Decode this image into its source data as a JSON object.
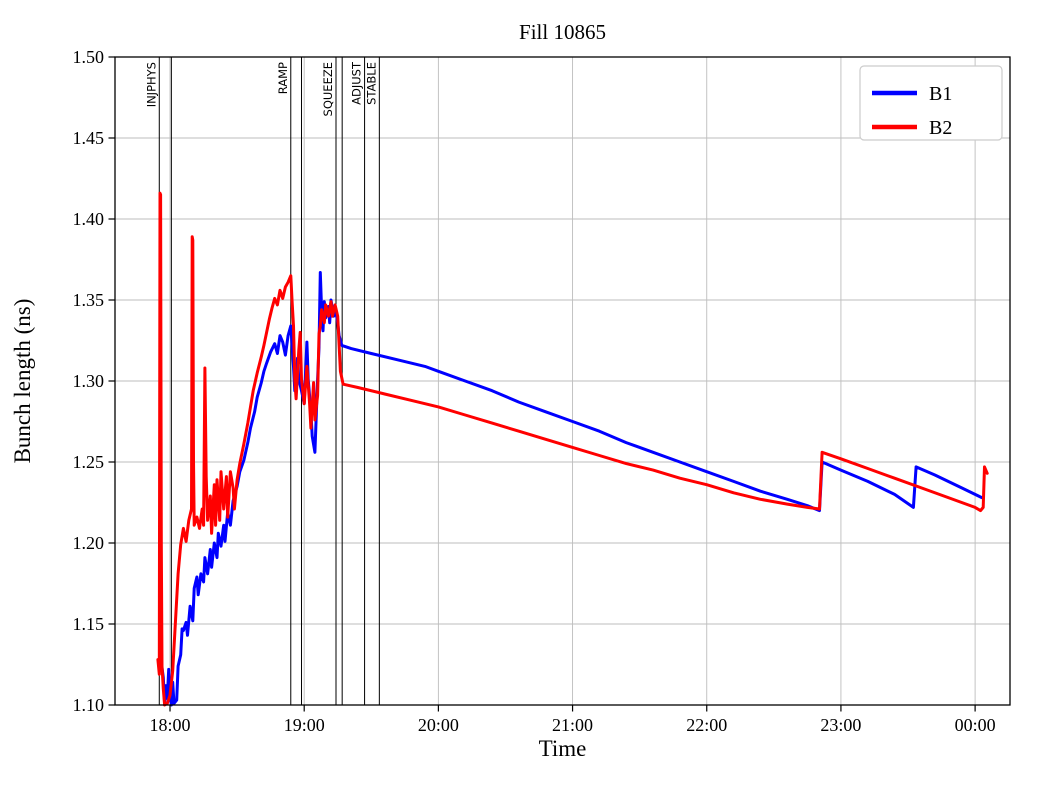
{
  "page": {
    "title": "Fill 10865"
  },
  "chart_data": {
    "type": "line",
    "title": "Fill 10865",
    "xlabel": "Time",
    "ylabel": "Bunch length (ns)",
    "x_unit": "hours after 18:00 (clock times shown on axis)",
    "xlim": [
      -0.41,
      6.26
    ],
    "ylim": [
      1.1,
      1.5
    ],
    "grid": true,
    "legend_position": "upper right",
    "x_ticks": [
      {
        "t": 0,
        "label": "18:00"
      },
      {
        "t": 1,
        "label": "19:00"
      },
      {
        "t": 2,
        "label": "20:00"
      },
      {
        "t": 3,
        "label": "21:00"
      },
      {
        "t": 4,
        "label": "22:00"
      },
      {
        "t": 5,
        "label": "23:00"
      },
      {
        "t": 6,
        "label": "00:00"
      }
    ],
    "y_ticks": [
      1.1,
      1.15,
      1.2,
      1.25,
      1.3,
      1.35,
      1.4,
      1.45,
      1.5
    ],
    "style": {
      "grid_color": "#bdbdbd",
      "axis_color": "#000000",
      "legend_edge": "#cccccc",
      "background": "#ffffff",
      "series_linewidth": 3,
      "mode_line_color": "#000000"
    },
    "beam_modes": [
      {
        "label": "INJPHYS",
        "lines": [
          -0.08,
          0.01
        ]
      },
      {
        "label": "RAMP",
        "lines": [
          0.9,
          0.98
        ]
      },
      {
        "label": "SQUEEZE",
        "lines": [
          1.237,
          1.283
        ]
      },
      {
        "label": "ADJUST",
        "lines": [
          1.45
        ]
      },
      {
        "label": "STABLE",
        "lines": [
          1.56
        ]
      }
    ],
    "series": [
      {
        "name": "B1",
        "color": "#0000ff",
        "points": [
          [
            -0.06,
            1.123
          ],
          [
            -0.05,
            1.117
          ],
          [
            -0.04,
            1.101
          ],
          [
            -0.03,
            1.112
          ],
          [
            -0.02,
            1.104
          ],
          [
            -0.01,
            1.122
          ],
          [
            0,
            1.107
          ],
          [
            0.01,
            1.1
          ],
          [
            0.02,
            1.114
          ],
          [
            0.03,
            1.101
          ],
          [
            0.05,
            1.103
          ],
          [
            0.06,
            1.124
          ],
          [
            0.08,
            1.131
          ],
          [
            0.09,
            1.147
          ],
          [
            0.1,
            1.146
          ],
          [
            0.12,
            1.151
          ],
          [
            0.13,
            1.143
          ],
          [
            0.15,
            1.161
          ],
          [
            0.17,
            1.152
          ],
          [
            0.18,
            1.172
          ],
          [
            0.2,
            1.179
          ],
          [
            0.21,
            1.168
          ],
          [
            0.23,
            1.181
          ],
          [
            0.25,
            1.176
          ],
          [
            0.26,
            1.191
          ],
          [
            0.28,
            1.181
          ],
          [
            0.3,
            1.196
          ],
          [
            0.31,
            1.185
          ],
          [
            0.33,
            1.2
          ],
          [
            0.35,
            1.191
          ],
          [
            0.36,
            1.206
          ],
          [
            0.38,
            1.198
          ],
          [
            0.4,
            1.211
          ],
          [
            0.41,
            1.201
          ],
          [
            0.43,
            1.219
          ],
          [
            0.45,
            1.211
          ],
          [
            0.47,
            1.226
          ],
          [
            0.5,
            1.235
          ],
          [
            0.52,
            1.244
          ],
          [
            0.55,
            1.251
          ],
          [
            0.58,
            1.262
          ],
          [
            0.6,
            1.271
          ],
          [
            0.63,
            1.281
          ],
          [
            0.65,
            1.29
          ],
          [
            0.68,
            1.299
          ],
          [
            0.7,
            1.306
          ],
          [
            0.72,
            1.311
          ],
          [
            0.75,
            1.318
          ],
          [
            0.78,
            1.323
          ],
          [
            0.8,
            1.317
          ],
          [
            0.82,
            1.328
          ],
          [
            0.84,
            1.324
          ],
          [
            0.86,
            1.316
          ],
          [
            0.88,
            1.328
          ],
          [
            0.9,
            1.334
          ],
          [
            0.92,
            1.309
          ],
          [
            0.93,
            1.294
          ],
          [
            0.95,
            1.314
          ],
          [
            0.96,
            1.301
          ],
          [
            0.98,
            1.294
          ],
          [
            1,
            1.286
          ],
          [
            1.02,
            1.324
          ],
          [
            1.03,
            1.301
          ],
          [
            1.05,
            1.281
          ],
          [
            1.06,
            1.266
          ],
          [
            1.08,
            1.256
          ],
          [
            1.1,
            1.301
          ],
          [
            1.11,
            1.321
          ],
          [
            1.12,
            1.367
          ],
          [
            1.13,
            1.344
          ],
          [
            1.14,
            1.331
          ],
          [
            1.15,
            1.349
          ],
          [
            1.16,
            1.339
          ],
          [
            1.18,
            1.346
          ],
          [
            1.19,
            1.336
          ],
          [
            1.2,
            1.35
          ],
          [
            1.22,
            1.34
          ],
          [
            1.23,
            1.346
          ],
          [
            1.25,
            1.336
          ],
          [
            1.26,
            1.328
          ],
          [
            1.28,
            1.322
          ],
          [
            1.35,
            1.32
          ],
          [
            1.5,
            1.317
          ],
          [
            1.7,
            1.313
          ],
          [
            1.9,
            1.309
          ],
          [
            2,
            1.306
          ],
          [
            2.2,
            1.3
          ],
          [
            2.4,
            1.294
          ],
          [
            2.6,
            1.287
          ],
          [
            2.8,
            1.281
          ],
          [
            3,
            1.275
          ],
          [
            3.2,
            1.269
          ],
          [
            3.4,
            1.262
          ],
          [
            3.6,
            1.256
          ],
          [
            3.8,
            1.25
          ],
          [
            4,
            1.244
          ],
          [
            4.2,
            1.238
          ],
          [
            4.4,
            1.232
          ],
          [
            4.6,
            1.227
          ],
          [
            4.75,
            1.223
          ],
          [
            4.84,
            1.22
          ],
          [
            4.86,
            1.25
          ],
          [
            5,
            1.245
          ],
          [
            5.2,
            1.238
          ],
          [
            5.4,
            1.23
          ],
          [
            5.54,
            1.222
          ],
          [
            5.56,
            1.247
          ],
          [
            5.7,
            1.242
          ],
          [
            5.9,
            1.234
          ],
          [
            6.05,
            1.228
          ]
        ]
      },
      {
        "name": "B2",
        "color": "#ff0000",
        "points": [
          [
            -0.09,
            1.128
          ],
          [
            -0.08,
            1.119
          ],
          [
            -0.075,
            1.416
          ],
          [
            -0.07,
            1.415
          ],
          [
            -0.065,
            1.2
          ],
          [
            -0.06,
            1.124
          ],
          [
            -0.05,
            1.11
          ],
          [
            -0.04,
            1.1
          ],
          [
            -0.02,
            1.101
          ],
          [
            0,
            1.106
          ],
          [
            0.02,
            1.121
          ],
          [
            0.04,
            1.151
          ],
          [
            0.06,
            1.181
          ],
          [
            0.08,
            1.199
          ],
          [
            0.1,
            1.209
          ],
          [
            0.12,
            1.201
          ],
          [
            0.14,
            1.214
          ],
          [
            0.16,
            1.221
          ],
          [
            0.165,
            1.389
          ],
          [
            0.17,
            1.387
          ],
          [
            0.175,
            1.251
          ],
          [
            0.18,
            1.211
          ],
          [
            0.2,
            1.216
          ],
          [
            0.22,
            1.209
          ],
          [
            0.24,
            1.221
          ],
          [
            0.25,
            1.211
          ],
          [
            0.26,
            1.308
          ],
          [
            0.27,
            1.241
          ],
          [
            0.28,
            1.214
          ],
          [
            0.3,
            1.229
          ],
          [
            0.31,
            1.206
          ],
          [
            0.33,
            1.236
          ],
          [
            0.34,
            1.211
          ],
          [
            0.35,
            1.239
          ],
          [
            0.37,
            1.214
          ],
          [
            0.38,
            1.244
          ],
          [
            0.4,
            1.221
          ],
          [
            0.42,
            1.241
          ],
          [
            0.43,
            1.216
          ],
          [
            0.45,
            1.244
          ],
          [
            0.47,
            1.234
          ],
          [
            0.48,
            1.221
          ],
          [
            0.5,
            1.239
          ],
          [
            0.52,
            1.249
          ],
          [
            0.55,
            1.261
          ],
          [
            0.58,
            1.274
          ],
          [
            0.6,
            1.284
          ],
          [
            0.62,
            1.294
          ],
          [
            0.65,
            1.305
          ],
          [
            0.68,
            1.315
          ],
          [
            0.7,
            1.322
          ],
          [
            0.72,
            1.33
          ],
          [
            0.74,
            1.338
          ],
          [
            0.76,
            1.345
          ],
          [
            0.78,
            1.351
          ],
          [
            0.8,
            1.347
          ],
          [
            0.82,
            1.356
          ],
          [
            0.84,
            1.351
          ],
          [
            0.86,
            1.358
          ],
          [
            0.88,
            1.361
          ],
          [
            0.9,
            1.365
          ],
          [
            0.91,
            1.349
          ],
          [
            0.92,
            1.334
          ],
          [
            0.93,
            1.301
          ],
          [
            0.94,
            1.289
          ],
          [
            0.96,
            1.319
          ],
          [
            0.97,
            1.33
          ],
          [
            0.98,
            1.301
          ],
          [
            1,
            1.286
          ],
          [
            1.02,
            1.309
          ],
          [
            1.04,
            1.286
          ],
          [
            1.05,
            1.271
          ],
          [
            1.07,
            1.299
          ],
          [
            1.08,
            1.276
          ],
          [
            1.1,
            1.291
          ],
          [
            1.11,
            1.329
          ],
          [
            1.12,
            1.334
          ],
          [
            1.13,
            1.344
          ],
          [
            1.15,
            1.336
          ],
          [
            1.16,
            1.347
          ],
          [
            1.18,
            1.34
          ],
          [
            1.2,
            1.349
          ],
          [
            1.21,
            1.34
          ],
          [
            1.23,
            1.347
          ],
          [
            1.25,
            1.34
          ],
          [
            1.27,
            1.306
          ],
          [
            1.29,
            1.298
          ],
          [
            1.4,
            1.296
          ],
          [
            1.6,
            1.292
          ],
          [
            1.8,
            1.288
          ],
          [
            2,
            1.284
          ],
          [
            2.2,
            1.279
          ],
          [
            2.4,
            1.274
          ],
          [
            2.6,
            1.269
          ],
          [
            2.8,
            1.264
          ],
          [
            3,
            1.259
          ],
          [
            3.2,
            1.254
          ],
          [
            3.4,
            1.249
          ],
          [
            3.6,
            1.245
          ],
          [
            3.8,
            1.24
          ],
          [
            4,
            1.236
          ],
          [
            4.2,
            1.231
          ],
          [
            4.4,
            1.227
          ],
          [
            4.6,
            1.224
          ],
          [
            4.75,
            1.222
          ],
          [
            4.84,
            1.221
          ],
          [
            4.86,
            1.256
          ],
          [
            5,
            1.252
          ],
          [
            5.2,
            1.246
          ],
          [
            5.4,
            1.24
          ],
          [
            5.6,
            1.234
          ],
          [
            5.8,
            1.228
          ],
          [
            6,
            1.222
          ],
          [
            6.04,
            1.22
          ],
          [
            6.06,
            1.222
          ],
          [
            6.07,
            1.247
          ],
          [
            6.09,
            1.243
          ]
        ]
      }
    ]
  }
}
